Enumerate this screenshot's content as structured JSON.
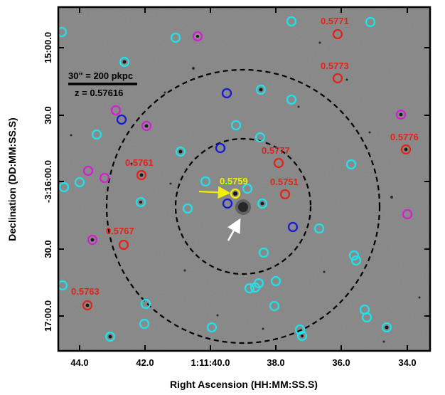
{
  "figure": {
    "x_axis_title": "Right Ascension (HH:MM:SS.S)",
    "y_axis_title": "Declination (DD:MM:SS.S)",
    "x_ticks": [
      "44.0",
      "42.0",
      "1:11:40.0",
      "38.0",
      "36.0",
      "34.0"
    ],
    "y_ticks": [
      "15:00.0",
      "30.0",
      "-3:16:00.0",
      "30.0",
      "17:00.0"
    ],
    "scale_bar_label": "30\" = 200 pkpc",
    "redshift_label": "z = 0.57616",
    "colors": {
      "background": "#8f8f8f",
      "frame": "#000000",
      "red": "#e2231a",
      "cyan": "#22e0e8",
      "magenta": "#d41fd4",
      "blue": "#1a1ad4",
      "yellow": "#f0f000",
      "green": "#1fd11f",
      "white_arrow": "#ffffff"
    },
    "legend_markers": {
      "cyan": "cyan-circle-marker",
      "magenta": "magenta-circle-marker",
      "blue": "blue-circle-marker",
      "red": "red-circle-marker-with-redshift"
    },
    "redshift_labels": [
      {
        "text": "0.5771",
        "color": "red"
      },
      {
        "text": "0.5773",
        "color": "red"
      },
      {
        "text": "0.5776",
        "color": "red"
      },
      {
        "text": "0.5777",
        "color": "red"
      },
      {
        "text": "0.5761",
        "color": "red"
      },
      {
        "text": "0.5759",
        "color": "yellow"
      },
      {
        "text": "0.5751",
        "color": "red"
      },
      {
        "text": "0.5767",
        "color": "red"
      },
      {
        "text": "0.5763",
        "color": "red"
      }
    ]
  }
}
